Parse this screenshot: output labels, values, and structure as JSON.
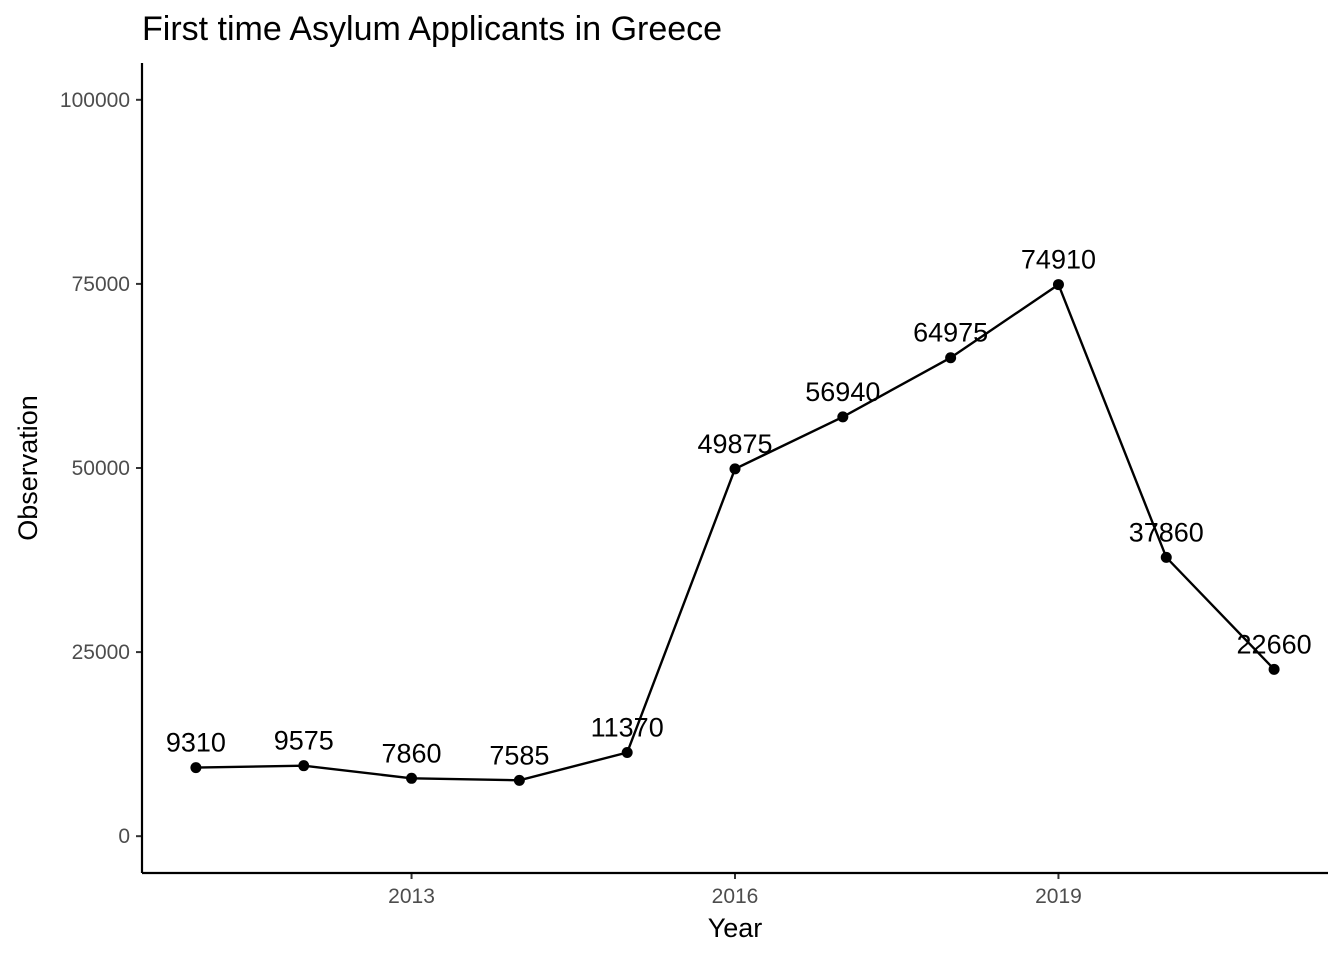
{
  "chart_data": {
    "type": "line",
    "title": "First time Asylum Applicants in Greece",
    "xlabel": "Year",
    "ylabel": "Observation",
    "x": [
      2011,
      2012,
      2013,
      2014,
      2015,
      2016,
      2017,
      2018,
      2019,
      2020,
      2021
    ],
    "values": [
      9310,
      9575,
      7860,
      7585,
      11370,
      49875,
      56940,
      64975,
      74910,
      37860,
      22660
    ],
    "data_labels": [
      "9310",
      "9575",
      "7860",
      "7585",
      "11370",
      "49875",
      "56940",
      "64975",
      "74910",
      "37860",
      "22660"
    ],
    "xlim": [
      2010.5,
      2021.5
    ],
    "ylim": [
      -5000,
      105000
    ],
    "x_ticks": [
      2013,
      2016,
      2019
    ],
    "x_tick_labels": [
      "2013",
      "2016",
      "2019"
    ],
    "y_ticks": [
      0,
      25000,
      50000,
      75000,
      100000
    ],
    "y_tick_labels": [
      "0",
      "25000",
      "50000",
      "75000",
      "100000"
    ],
    "grid": false,
    "legend": "none",
    "line_color": "#000000",
    "point_color": "#000000"
  }
}
